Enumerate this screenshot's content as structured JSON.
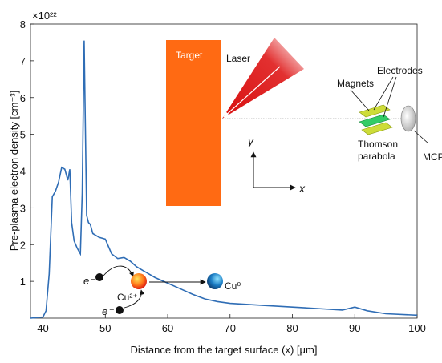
{
  "chart_data": {
    "type": "line",
    "title": "",
    "xlabel": "Distance from the target surface (x) [μm]",
    "ylabel": "Pre-plasma electron density [cm⁻³]",
    "y_multiplier": "×10²²",
    "xlim": [
      38,
      100
    ],
    "ylim": [
      0,
      8
    ],
    "x_ticks": [
      40,
      50,
      60,
      70,
      80,
      90,
      100
    ],
    "y_ticks": [
      1,
      2,
      3,
      4,
      5,
      6,
      7,
      8
    ],
    "grid": false,
    "series": [
      {
        "x": [
          38,
          40,
          40.5,
          41,
          41.5,
          42,
          42.5,
          43,
          43.5,
          44,
          44.3,
          44.6,
          45,
          45.5,
          46,
          46.3,
          46.6,
          47,
          47.3,
          47.6,
          48,
          49,
          50,
          51,
          52,
          53,
          54,
          55,
          56,
          57,
          58,
          60,
          62,
          64,
          66,
          68,
          70,
          75,
          80,
          85,
          88,
          90,
          92,
          95,
          100
        ],
        "y": [
          0,
          0.03,
          0.2,
          1.2,
          3.3,
          3.45,
          3.7,
          4.1,
          4.05,
          3.75,
          4.05,
          2.6,
          2.1,
          1.9,
          1.75,
          3.4,
          7.55,
          2.8,
          2.6,
          2.55,
          2.3,
          2.2,
          2.15,
          1.75,
          1.62,
          1.65,
          1.55,
          1.4,
          1.3,
          1.2,
          1.1,
          0.95,
          0.8,
          0.65,
          0.52,
          0.45,
          0.4,
          0.35,
          0.3,
          0.25,
          0.22,
          0.3,
          0.2,
          0.12,
          0.08
        ]
      }
    ],
    "line_color": "#2f6db5"
  },
  "inset": {
    "target_label": "Target",
    "laser_label": "Laser",
    "axis_y_label": "y",
    "axis_x_label": "x",
    "electrodes_label": "Electrodes",
    "magnets_label": "Magnets",
    "thomson_label_line1": "Thomson",
    "thomson_label_line2": "parabola",
    "mcp_label": "MCP",
    "electron_label": "e⁻",
    "ion_label": "Cu²⁺",
    "neutral_label": "Cu⁰",
    "target_color": "#ff6a13",
    "laser_color": "#e01b1b"
  }
}
